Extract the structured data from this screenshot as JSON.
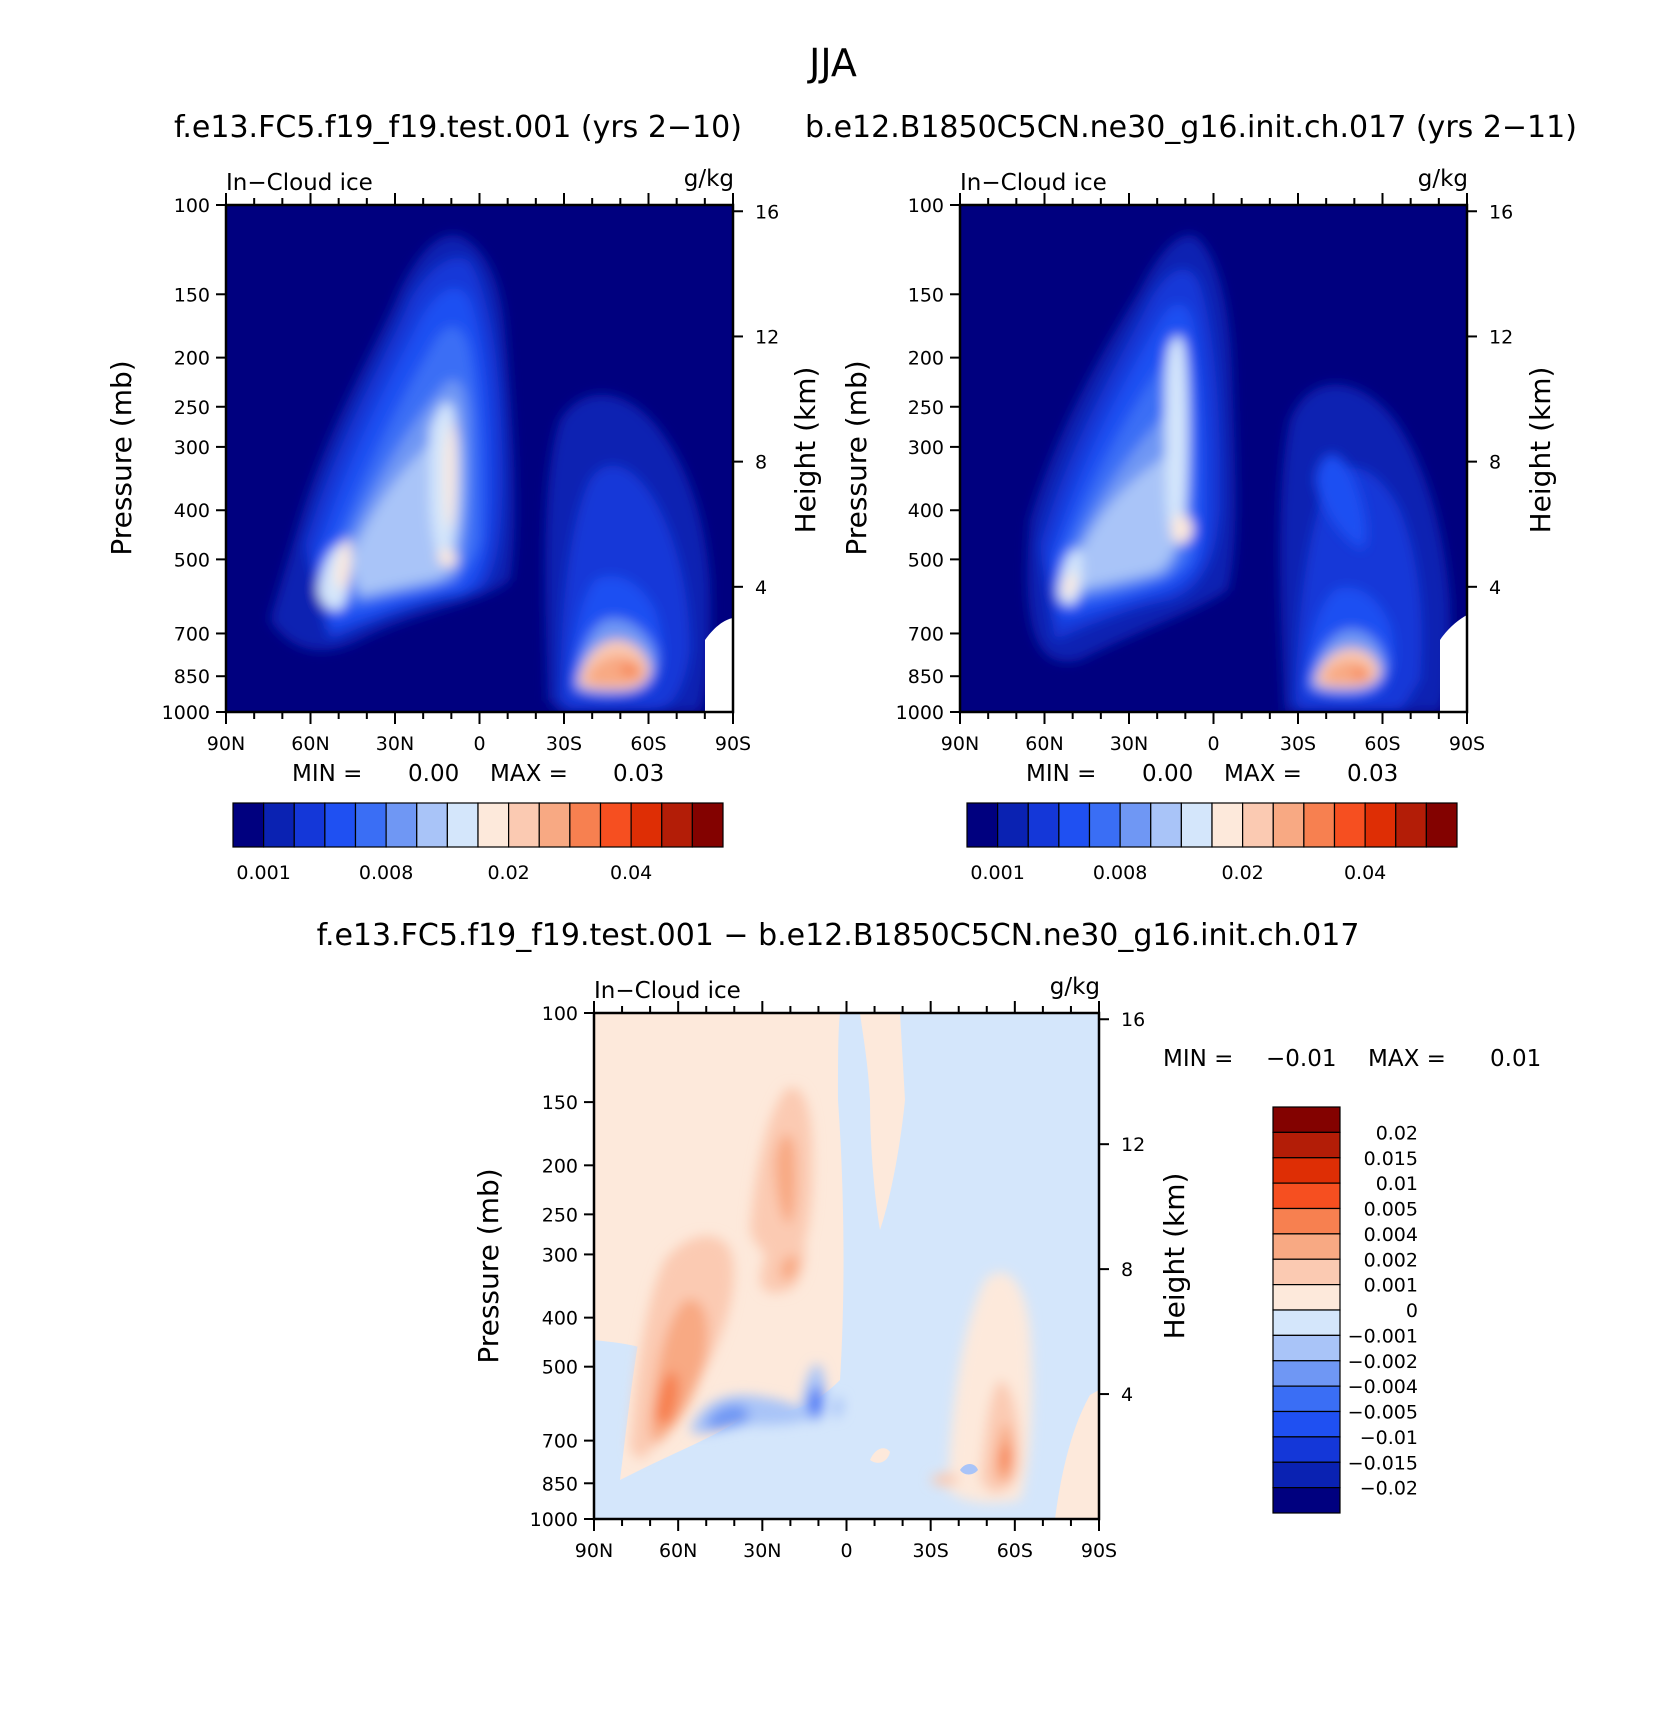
{
  "figure": {
    "season": "JJA",
    "title_left": "f.e13.FC5.f19_f19.test.001 (yrs 2-10)",
    "title_right": "b.e12.B1850C5CN.ne30_g16.init.ch.017 (yrs 2-11)",
    "title_diff": "f.e13.FC5.f19_f19.test.001 - b.e12.B1850C5CN.ne30_g16.init.ch.017"
  },
  "chart_data": [
    {
      "type": "heatmap",
      "panel": "model",
      "label_left": "In-Cloud ice",
      "label_right": "g/kg",
      "xlabel": "",
      "ylabel": "Pressure (mb)",
      "ylabel_right": "Height (km)",
      "x_ticks": [
        "90N",
        "60N",
        "30N",
        "0",
        "30S",
        "60S",
        "90S"
      ],
      "y_ticks": [
        100,
        150,
        200,
        250,
        300,
        400,
        500,
        700,
        850,
        1000
      ],
      "y_scale": "log",
      "height_ticks": [
        16,
        12,
        8,
        4
      ],
      "min_label": "MIN =",
      "min_value": "0.00",
      "max_label": "MAX =",
      "max_value": "0.03",
      "colorbar_labels": [
        "0.001",
        "0.008",
        "0.02",
        "0.04"
      ],
      "features": [
        {
          "lat": -18,
          "p": 360,
          "value": 0.003
        },
        {
          "lat": -23,
          "p": 400,
          "value": 0.008
        },
        {
          "lat": -27,
          "p": 440,
          "value": 0.012
        },
        {
          "lat": -35,
          "p": 500,
          "value": 0.012
        },
        {
          "lat": -53,
          "p": 520,
          "value": 0.018
        },
        {
          "lat": -10,
          "p": 500,
          "value": 0.022
        },
        {
          "lat": -10,
          "p": 320,
          "value": 0.015
        },
        {
          "lat": 50,
          "p": 450,
          "value": 0.004
        },
        {
          "lat": 52,
          "p": 800,
          "value": 0.03
        }
      ]
    },
    {
      "type": "heatmap",
      "panel": "control",
      "label_left": "In-Cloud ice",
      "label_right": "g/kg",
      "xlabel": "",
      "ylabel": "Pressure (mb)",
      "ylabel_right": "Height (km)",
      "x_ticks": [
        "90N",
        "60N",
        "30N",
        "0",
        "30S",
        "60S",
        "90S"
      ],
      "y_ticks": [
        100,
        150,
        200,
        250,
        300,
        400,
        500,
        700,
        850,
        1000
      ],
      "y_scale": "log",
      "height_ticks": [
        16,
        12,
        8,
        4
      ],
      "min_label": "MIN =",
      "min_value": "0.00",
      "max_label": "MAX =",
      "max_value": "0.03",
      "colorbar_labels": [
        "0.001",
        "0.008",
        "0.02",
        "0.04"
      ],
      "features": [
        {
          "lat": -18,
          "p": 360,
          "value": 0.003
        },
        {
          "lat": -30,
          "p": 450,
          "value": 0.008
        },
        {
          "lat": -55,
          "p": 520,
          "value": 0.015
        },
        {
          "lat": -10,
          "p": 500,
          "value": 0.022
        },
        {
          "lat": -10,
          "p": 300,
          "value": 0.015
        },
        {
          "lat": 45,
          "p": 420,
          "value": 0.004
        },
        {
          "lat": 50,
          "p": 800,
          "value": 0.025
        }
      ]
    },
    {
      "type": "heatmap",
      "panel": "difference",
      "label_left": "In-Cloud ice",
      "label_right": "g/kg",
      "xlabel": "",
      "ylabel": "Pressure (mb)",
      "ylabel_right": "Height (km)",
      "x_ticks": [
        "90N",
        "60N",
        "30N",
        "0",
        "30S",
        "60S",
        "90S"
      ],
      "y_ticks": [
        100,
        150,
        200,
        250,
        300,
        400,
        500,
        700,
        850,
        1000
      ],
      "y_scale": "log",
      "height_ticks": [
        16,
        12,
        8,
        4
      ],
      "min_label": "MIN =",
      "min_value": "-0.01",
      "max_label": "MAX =",
      "max_value": "0.01",
      "colorbar_labels": [
        "0.02",
        "0.015",
        "0.01",
        "0.005",
        "0.004",
        "0.002",
        "0.001",
        "0",
        "-0.001",
        "-0.002",
        "-0.004",
        "-0.005",
        "-0.01",
        "-0.015",
        "-0.02"
      ],
      "features": [
        {
          "lat": -28,
          "p": 250,
          "value": 0.001
        },
        {
          "lat": -62,
          "p": 420,
          "value": 0.002
        },
        {
          "lat": -67,
          "p": 580,
          "value": 0.004
        },
        {
          "lat": -25,
          "p": 300,
          "value": 0.002
        },
        {
          "lat": -48,
          "p": 600,
          "value": -0.002
        },
        {
          "lat": -10,
          "p": 590,
          "value": -0.004
        },
        {
          "lat": 55,
          "p": 500,
          "value": 0.001
        },
        {
          "lat": 58,
          "p": 720,
          "value": 0.004
        },
        {
          "lat": 60,
          "p": 780,
          "value": 0.005
        },
        {
          "lat": 45,
          "p": 800,
          "value": -0.001
        }
      ]
    }
  ],
  "palettes": {
    "sequential": [
      "#00007f",
      "#0a22b2",
      "#1437d8",
      "#1f50f2",
      "#3a6ef5",
      "#6f97f4",
      "#a9c4f8",
      "#d4e6fb",
      "#fde9db",
      "#fbcab2",
      "#f8a983",
      "#f78050",
      "#f64f20",
      "#de2e05",
      "#b31d07",
      "#830200"
    ],
    "diverging_top_to_bottom": [
      "#830200",
      "#b31d07",
      "#de2e05",
      "#f64f20",
      "#f78050",
      "#f8a983",
      "#fbcab2",
      "#fde9db",
      "#d4e6fb",
      "#a9c4f8",
      "#6f97f4",
      "#3a6ef5",
      "#1f50f2",
      "#1437d8",
      "#0a22b2",
      "#00007f"
    ]
  }
}
